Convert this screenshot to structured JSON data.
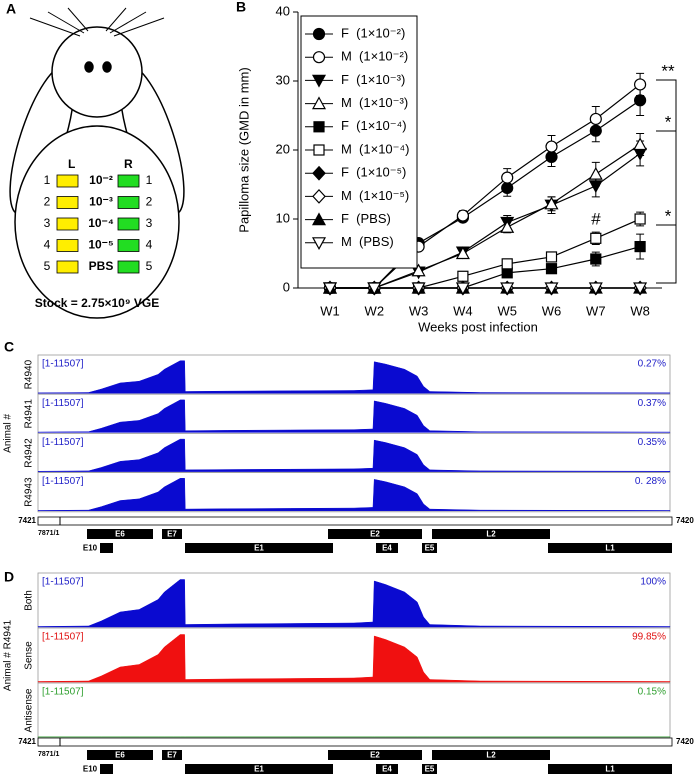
{
  "panel_a": {
    "label": "A",
    "left_label": "L",
    "right_label": "R",
    "rows": [
      {
        "left": "1",
        "dose": "10⁻²",
        "right": "1"
      },
      {
        "left": "2",
        "dose": "10⁻³",
        "right": "2"
      },
      {
        "left": "3",
        "dose": "10⁻⁴",
        "right": "3"
      },
      {
        "left": "4",
        "dose": "10⁻⁵",
        "right": "4"
      },
      {
        "left": "5",
        "dose": "PBS",
        "right": "5"
      }
    ],
    "stock": "Stock = 2.75×10⁹ VGE"
  },
  "chart_data": {
    "type": "line",
    "panel_label": "B",
    "x_label": "Weeks post infection",
    "y_label": "Papilloma size (GMD in mm)",
    "categories": [
      "W1",
      "W2",
      "W3",
      "W4",
      "W5",
      "W6",
      "W7",
      "W8"
    ],
    "ylim": [
      0,
      40
    ],
    "yticks": [
      0,
      10,
      20,
      30,
      40
    ],
    "legend": "top-left",
    "series": [
      {
        "name": "F  (1×10⁻²)",
        "color": "#000000",
        "marker": "circle",
        "filled": true,
        "values": [
          0,
          0,
          6.5,
          10.2,
          14.5,
          19,
          22.8,
          27.2
        ],
        "errors": [
          0,
          0,
          0.4,
          0.6,
          1.2,
          1.4,
          1.6,
          2.2
        ]
      },
      {
        "name": "M  (1×10⁻²)",
        "color": "#000000",
        "marker": "circle",
        "filled": false,
        "values": [
          0,
          0,
          6,
          10.5,
          16,
          20.5,
          24.5,
          29.5
        ],
        "errors": [
          0,
          0,
          0.5,
          0.7,
          1.3,
          1.6,
          1.8,
          1.6
        ]
      },
      {
        "name": "F  (1×10⁻³)",
        "color": "#000000",
        "marker": "triangle-down",
        "filled": true,
        "values": [
          0,
          0,
          2.3,
          5.2,
          9.5,
          12,
          14.8,
          19.5
        ],
        "errors": [
          0,
          0,
          0.4,
          0.5,
          1,
          1.2,
          1.6,
          1.8
        ]
      },
      {
        "name": "M  (1×10⁻³)",
        "color": "#000000",
        "marker": "triangle-up",
        "filled": false,
        "values": [
          0,
          0,
          2.5,
          5,
          8.8,
          12.2,
          16.5,
          20.8
        ],
        "errors": [
          0,
          0,
          0.4,
          0.5,
          0.8,
          1,
          1.7,
          1.6
        ]
      },
      {
        "name": "F  (1×10⁻⁴)",
        "color": "#000000",
        "marker": "square",
        "filled": true,
        "values": [
          0,
          0,
          0,
          0,
          2.2,
          2.8,
          4.2,
          6
        ],
        "errors": [
          0,
          0,
          0,
          0,
          0.5,
          0.6,
          1,
          1.8
        ]
      },
      {
        "name": "M  (1×10⁻⁴)",
        "color": "#000000",
        "marker": "square",
        "filled": false,
        "values": [
          0,
          0,
          0,
          1.7,
          3.5,
          4.5,
          7.2,
          10
        ],
        "errors": [
          0,
          0,
          0,
          0.3,
          0.5,
          0.6,
          0.9,
          1
        ]
      },
      {
        "name": "F  (1×10⁻⁵)",
        "color": "#000000",
        "marker": "diamond",
        "filled": true,
        "values": [
          0,
          0,
          0,
          0,
          0,
          0,
          0,
          0
        ]
      },
      {
        "name": "M  (1×10⁻⁵)",
        "color": "#000000",
        "marker": "diamond",
        "filled": false,
        "values": [
          0,
          0,
          0,
          0,
          0,
          0,
          0,
          0
        ]
      },
      {
        "name": "F  (PBS)",
        "color": "#000000",
        "marker": "triangle-up",
        "filled": true,
        "values": [
          0,
          0,
          0,
          0,
          0,
          0,
          0,
          0
        ]
      },
      {
        "name": "M  (PBS)",
        "color": "#000000",
        "marker": "triangle-down",
        "filled": false,
        "values": [
          0,
          0,
          0,
          0,
          0,
          0,
          0,
          0
        ]
      }
    ],
    "annotations": [
      "**",
      "*",
      "*",
      "#"
    ]
  },
  "panel_c": {
    "label": "C",
    "y_label": "Animal #",
    "profile_x": [
      0,
      0.08,
      0.1,
      0.13,
      0.16,
      0.19,
      0.2,
      0.215,
      0.225,
      0.232,
      0.233,
      0.3,
      0.4,
      0.5,
      0.53,
      0.532,
      0.55,
      0.58,
      0.6,
      0.61,
      0.62,
      0.7,
      1
    ],
    "tracks": [
      {
        "name": "R4940",
        "range": "[1-11507]",
        "percent": "0.27%",
        "color": "#0a0ad0",
        "text_color": "#2020c8",
        "profile": [
          0.01,
          0.02,
          0.12,
          0.3,
          0.35,
          0.55,
          0.7,
          0.85,
          0.95,
          0.95,
          0.05,
          0.06,
          0.07,
          0.08,
          0.1,
          0.92,
          0.85,
          0.7,
          0.5,
          0.2,
          0.05,
          0.02,
          0.01
        ]
      },
      {
        "name": "R4941",
        "range": "[1-11507]",
        "percent": "0.37%",
        "color": "#0a0ad0",
        "text_color": "#2020c8",
        "profile": [
          0.01,
          0.02,
          0.12,
          0.3,
          0.35,
          0.55,
          0.7,
          0.85,
          0.95,
          0.95,
          0.05,
          0.06,
          0.07,
          0.08,
          0.1,
          0.92,
          0.85,
          0.7,
          0.5,
          0.2,
          0.05,
          0.02,
          0.01
        ]
      },
      {
        "name": "R4942",
        "range": "[1-11507]",
        "percent": "0.35%",
        "color": "#0a0ad0",
        "text_color": "#2020c8",
        "profile": [
          0.01,
          0.02,
          0.12,
          0.3,
          0.35,
          0.55,
          0.7,
          0.85,
          0.95,
          0.95,
          0.05,
          0.06,
          0.07,
          0.08,
          0.1,
          0.92,
          0.85,
          0.7,
          0.5,
          0.2,
          0.05,
          0.02,
          0.01
        ]
      },
      {
        "name": "R4943",
        "range": "[1-11507]",
        "percent": "0. 28%",
        "color": "#0a0ad0",
        "text_color": "#2020c8",
        "profile": [
          0.01,
          0.02,
          0.12,
          0.3,
          0.35,
          0.55,
          0.7,
          0.85,
          0.95,
          0.95,
          0.05,
          0.06,
          0.07,
          0.08,
          0.1,
          0.92,
          0.85,
          0.7,
          0.5,
          0.2,
          0.05,
          0.02,
          0.01
        ]
      }
    ],
    "map": {
      "start": "7421",
      "origin": "7871/1",
      "end": "7420",
      "top_genes": [
        "E6",
        "E7",
        "E2",
        "L2"
      ],
      "bottom_genes": [
        "E10",
        "E1",
        "E4",
        "E5",
        "L1"
      ]
    }
  },
  "panel_d": {
    "label": "D",
    "y_label": "Animal # R4941",
    "profile_x": [
      0,
      0.08,
      0.1,
      0.13,
      0.16,
      0.19,
      0.2,
      0.215,
      0.225,
      0.232,
      0.233,
      0.3,
      0.4,
      0.5,
      0.53,
      0.532,
      0.55,
      0.58,
      0.6,
      0.61,
      0.62,
      0.7,
      1
    ],
    "tracks": [
      {
        "name": "Both",
        "range": "[1-11507]",
        "percent": "100%",
        "color": "#0a0ad0",
        "text_color": "#2020c8",
        "profile": [
          0.01,
          0.02,
          0.12,
          0.3,
          0.35,
          0.55,
          0.7,
          0.85,
          0.95,
          0.95,
          0.05,
          0.06,
          0.07,
          0.08,
          0.1,
          0.92,
          0.85,
          0.7,
          0.5,
          0.2,
          0.05,
          0.02,
          0.01
        ]
      },
      {
        "name": "Sense",
        "range": "[1-11507]",
        "percent": "99.85%",
        "color": "#f01010",
        "text_color": "#e01010",
        "profile": [
          0.01,
          0.02,
          0.12,
          0.3,
          0.35,
          0.55,
          0.7,
          0.85,
          0.95,
          0.95,
          0.05,
          0.06,
          0.07,
          0.08,
          0.1,
          0.92,
          0.85,
          0.7,
          0.5,
          0.2,
          0.05,
          0.02,
          0.01
        ]
      },
      {
        "name": "Antisense",
        "range": "[1-11507]",
        "percent": "0.15%",
        "color": "#30a030",
        "text_color": "#30a030",
        "profile": [
          0.003,
          0.003,
          0.003,
          0.003,
          0.003,
          0.003,
          0.003,
          0.003,
          0.003,
          0.003,
          0.003,
          0.003,
          0.003,
          0.003,
          0.003,
          0.003,
          0.003,
          0.003,
          0.003,
          0.003,
          0.003,
          0.003,
          0.003
        ]
      }
    ],
    "map": {
      "start": "7421",
      "origin": "7871/1",
      "end": "7420",
      "top_genes": [
        "E6",
        "E7",
        "E2",
        "L2"
      ],
      "bottom_genes": [
        "E10",
        "E1",
        "E4",
        "E5",
        "L1"
      ]
    }
  }
}
